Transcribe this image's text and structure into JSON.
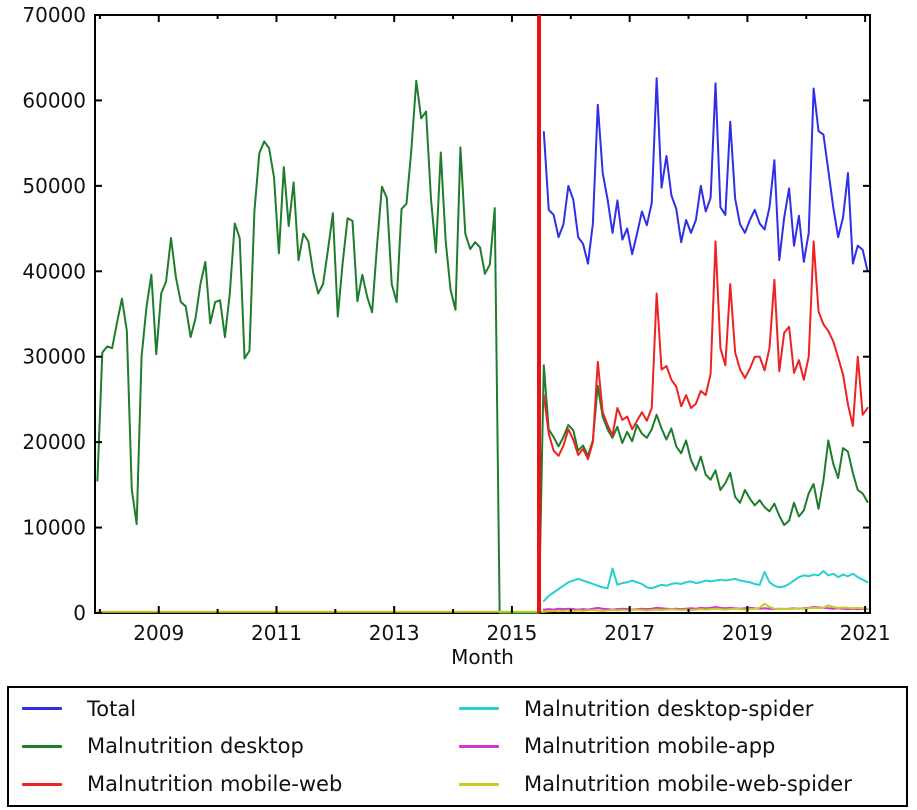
{
  "chart_data": {
    "type": "line",
    "title": "",
    "xlabel": "Month",
    "ylabel": "",
    "xlim": [
      2007.917,
      2021.083
    ],
    "ylim": [
      0,
      70000
    ],
    "yticks": [
      0,
      10000,
      20000,
      30000,
      40000,
      50000,
      60000,
      70000
    ],
    "xticks_major": [
      2009,
      2011,
      2013,
      2015,
      2017,
      2019,
      2021
    ],
    "xticks_minor": [
      2008,
      2010,
      2012,
      2014,
      2016,
      2018,
      2020
    ],
    "grid": false,
    "legend_position": "bottom",
    "legend_columns": 2,
    "axis_color": "#000000",
    "vline": {
      "x": 2015.46,
      "color": "#ee1111",
      "width": 4
    },
    "series": [
      {
        "name": "Total",
        "color": "#2f2fe8",
        "x_start": 2015.542,
        "values": [
          56300,
          47200,
          46600,
          44000,
          45500,
          50000,
          48400,
          44000,
          43200,
          40900,
          45600,
          59500,
          51500,
          48400,
          44500,
          48300,
          43700,
          45000,
          42000,
          44400,
          47000,
          45400,
          48000,
          62600,
          49800,
          53500,
          48900,
          47300,
          43400,
          46000,
          44500,
          46000,
          50000,
          47000,
          48600,
          62000,
          47500,
          46600,
          57500,
          48500,
          45500,
          44500,
          46000,
          47200,
          45600,
          44900,
          47500,
          53000,
          41300,
          46300,
          49700,
          43000,
          46500,
          41100,
          44500,
          61400,
          56400,
          56000,
          51800,
          47500,
          44000,
          46300,
          51500,
          40900,
          43000,
          42500,
          40000
        ]
      },
      {
        "name": "Malnutrition desktop",
        "color": "#1e7d2c",
        "x_start": 2007.958,
        "values": [
          15500,
          30500,
          31200,
          31000,
          34000,
          36800,
          33000,
          14500,
          10400,
          30000,
          35800,
          39600,
          30300,
          37400,
          38800,
          43900,
          39300,
          36400,
          35900,
          32300,
          34500,
          38500,
          41100,
          33900,
          36400,
          36600,
          32300,
          37500,
          45600,
          43900,
          29800,
          30700,
          47000,
          53800,
          55200,
          54400,
          51000,
          42100,
          52200,
          45300,
          50400,
          41300,
          44400,
          43500,
          39800,
          37400,
          38500,
          42500,
          46800,
          34700,
          41000,
          46200,
          45900,
          36500,
          39600,
          37000,
          35200,
          43000,
          49900,
          48600,
          38500,
          36400,
          47300,
          47900,
          54200,
          62300,
          57900,
          58700,
          48500,
          42200,
          53900,
          43500,
          37800,
          35500,
          54500,
          44400,
          42600,
          43400,
          42800,
          39700,
          40800,
          47400,
          0,
          0,
          0,
          0,
          0,
          0,
          0,
          0,
          0,
          29000,
          21500,
          20600,
          19500,
          20600,
          22000,
          21400,
          19000,
          19600,
          18400,
          20200,
          26600,
          23000,
          21500,
          20500,
          21800,
          19900,
          21200,
          20100,
          22000,
          21000,
          20500,
          21500,
          23200,
          21600,
          20300,
          21600,
          19500,
          18700,
          20200,
          17900,
          16700,
          18300,
          16200,
          15600,
          16700,
          14400,
          15200,
          16400,
          13600,
          12900,
          14400,
          13400,
          12600,
          13200,
          12400,
          11900,
          12800,
          11400,
          10300,
          10800,
          12900,
          11300,
          12000,
          14000,
          15100,
          12200,
          15500,
          20200,
          17500,
          15800,
          19300,
          18900,
          16400,
          14400,
          14000,
          13000
        ]
      },
      {
        "name": "Malnutrition mobile-web",
        "color": "#ee2222",
        "x_start": 2015.542,
        "values": [
          25500,
          21000,
          19000,
          18400,
          19600,
          21500,
          20300,
          18500,
          19200,
          18000,
          20000,
          29400,
          23500,
          22000,
          20800,
          24000,
          22600,
          23000,
          21500,
          22500,
          23500,
          22500,
          24000,
          37400,
          28500,
          28900,
          27300,
          26500,
          24200,
          25500,
          24000,
          24500,
          26000,
          25500,
          28000,
          43500,
          31000,
          29000,
          38500,
          30500,
          28500,
          27500,
          28600,
          30000,
          30000,
          28400,
          31000,
          39000,
          28300,
          32800,
          33500,
          28100,
          29600,
          27300,
          30000,
          43500,
          35300,
          33800,
          33000,
          31800,
          29900,
          27900,
          24400,
          21900,
          30000,
          23200,
          24000
        ]
      },
      {
        "name": "Malnutrition desktop-spider",
        "color": "#29cfcf",
        "x_start": 2015.542,
        "values": [
          1400,
          2000,
          2400,
          2800,
          3200,
          3600,
          3800,
          4000,
          3800,
          3600,
          3400,
          3200,
          3000,
          2900,
          5200,
          3300,
          3500,
          3600,
          3800,
          3600,
          3400,
          3000,
          2900,
          3100,
          3300,
          3200,
          3400,
          3500,
          3400,
          3600,
          3700,
          3500,
          3600,
          3800,
          3700,
          3800,
          3900,
          3800,
          3900,
          4000,
          3800,
          3700,
          3600,
          3400,
          3300,
          4800,
          3600,
          3200,
          3000,
          3100,
          3400,
          3800,
          4200,
          4400,
          4300,
          4500,
          4400,
          4900,
          4400,
          4600,
          4200,
          4500,
          4300,
          4600,
          4200,
          3900,
          3600
        ]
      },
      {
        "name": "Malnutrition mobile-app",
        "color": "#d633d6",
        "x_start": 2015.542,
        "values": [
          400,
          450,
          400,
          500,
          450,
          500,
          450,
          400,
          450,
          400,
          500,
          600,
          500,
          450,
          400,
          450,
          500,
          450,
          400,
          450,
          500,
          450,
          500,
          600,
          550,
          500,
          450,
          500,
          450,
          500,
          550,
          500,
          600,
          550,
          600,
          700,
          600,
          550,
          600,
          550,
          500,
          550,
          600,
          550,
          500,
          550,
          500,
          450,
          500,
          450,
          500,
          550,
          500,
          550,
          600,
          700,
          650,
          600,
          550,
          500,
          550,
          500,
          450,
          500,
          450,
          500,
          450
        ]
      },
      {
        "name": "Malnutrition mobile-web-spider",
        "color": "#c9c923",
        "x_start": 2015.542,
        "pre_points": [
          [
            2007.958,
            150
          ],
          [
            2015.458,
            150
          ]
        ],
        "values": [
          150,
          200,
          250,
          200,
          250,
          300,
          250,
          300,
          250,
          300,
          350,
          300,
          250,
          300,
          350,
          300,
          350,
          300,
          350,
          400,
          350,
          300,
          350,
          400,
          350,
          400,
          450,
          400,
          350,
          400,
          350,
          400,
          450,
          400,
          450,
          500,
          450,
          400,
          450,
          500,
          450,
          400,
          450,
          500,
          600,
          1100,
          700,
          500,
          450,
          500,
          450,
          500,
          550,
          500,
          550,
          600,
          550,
          600,
          900,
          700,
          600,
          650,
          600,
          550,
          600,
          550,
          500
        ]
      }
    ]
  }
}
